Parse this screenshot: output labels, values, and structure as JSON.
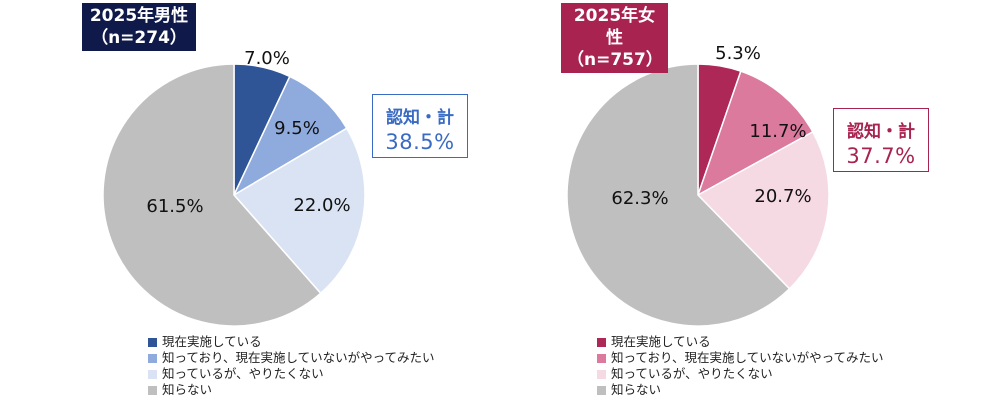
{
  "chart_data": [
    {
      "type": "pie",
      "title": "2025年男性",
      "subtitle": "（n=274）",
      "categories": [
        "現在実施している",
        "知っており、現在実施していないがやってみたい",
        "知っているが、やりたくない",
        "知らない"
      ],
      "values": [
        7.0,
        9.5,
        22.0,
        61.5
      ],
      "labels": [
        "7.0%",
        "9.5%",
        "22.0%",
        "61.5%"
      ],
      "colors": [
        "#2F5597",
        "#8FAADC",
        "#DAE3F3",
        "#BFBFBF"
      ],
      "title_bg": "#0F1A4A",
      "annotation": {
        "label": "認知・計",
        "value": "38.5%",
        "color": "#3A6BC4"
      },
      "legend": "bottom"
    },
    {
      "type": "pie",
      "title": "2025年女性",
      "subtitle": "（n=757）",
      "categories": [
        "現在実施している",
        "知っており、現在実施していないがやってみたい",
        "知っているが、やりたくない",
        "知らない"
      ],
      "values": [
        5.3,
        11.7,
        20.7,
        62.3
      ],
      "labels": [
        "5.3%",
        "11.7%",
        "20.7%",
        "62.3%"
      ],
      "colors": [
        "#AD2757",
        "#DB7A9C",
        "#F5D9E3",
        "#BFBFBF"
      ],
      "title_bg": "#A8234F",
      "annotation": {
        "label": "認知・計",
        "value": "37.7%",
        "color": "#A8234F"
      },
      "legend": "bottom"
    }
  ]
}
